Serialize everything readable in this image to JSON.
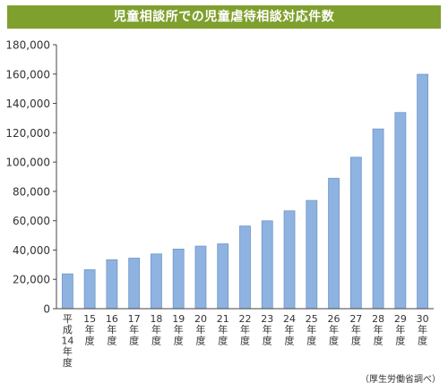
{
  "chart_data": {
    "type": "bar",
    "title": "児童相談所での児童虐待相談対応件数",
    "categories": [
      "平成14年度",
      "15年度",
      "16年度",
      "17年度",
      "18年度",
      "19年度",
      "20年度",
      "21年度",
      "22年度",
      "23年度",
      "24年度",
      "25年度",
      "26年度",
      "27年度",
      "28年度",
      "29年度",
      "30年度"
    ],
    "values": [
      23738,
      26569,
      33408,
      34472,
      37323,
      40639,
      42664,
      44211,
      56384,
      59919,
      66701,
      73802,
      88931,
      103286,
      122575,
      133778,
      159850
    ],
    "ylim": [
      0,
      180000
    ],
    "yticks": [
      "0",
      "20,000",
      "40,000",
      "60,000",
      "80,000",
      "100,000",
      "120,000",
      "140,000",
      "160,000",
      "180,000"
    ],
    "xlabel": "",
    "ylabel": "",
    "grid": false,
    "bar_color": "#8fb3e0",
    "bar_edge_color": "#6f96c8",
    "title_bg_color": "#7fa02e",
    "source_note": "（厚生労働省調べ）"
  }
}
